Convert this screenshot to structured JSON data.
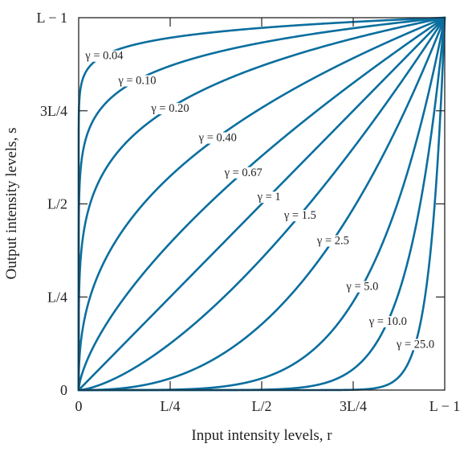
{
  "chart_data": {
    "type": "line",
    "xlabel": "Input intensity levels, r",
    "ylabel": "Output intensity levels, s",
    "xlim": [
      0,
      1
    ],
    "ylim": [
      0,
      1
    ],
    "x_ticks": [
      {
        "value": 0,
        "label": "0"
      },
      {
        "value": 0.25,
        "label": "L/4"
      },
      {
        "value": 0.5,
        "label": "L/2"
      },
      {
        "value": 0.75,
        "label": "3L/4"
      },
      {
        "value": 1,
        "label": "L − 1"
      }
    ],
    "y_ticks": [
      {
        "value": 0,
        "label": "0"
      },
      {
        "value": 0.25,
        "label": "L/4"
      },
      {
        "value": 0.5,
        "label": "L/2"
      },
      {
        "value": 0.75,
        "label": "3L/4"
      },
      {
        "value": 1,
        "label": "L − 1"
      }
    ],
    "curve_color": "#0a6e9e",
    "series": [
      {
        "name": "γ = 0.04",
        "gamma": 0.04
      },
      {
        "name": "γ = 0.10",
        "gamma": 0.1
      },
      {
        "name": "γ = 0.20",
        "gamma": 0.2
      },
      {
        "name": "γ = 0.40",
        "gamma": 0.4
      },
      {
        "name": "γ = 0.67",
        "gamma": 0.67
      },
      {
        "name": "γ = 1",
        "gamma": 1
      },
      {
        "name": "γ = 1.5",
        "gamma": 1.5
      },
      {
        "name": "γ = 2.5",
        "gamma": 2.5
      },
      {
        "name": "γ = 5.0",
        "gamma": 5.0
      },
      {
        "name": "γ = 10.0",
        "gamma": 10.0
      },
      {
        "name": "γ = 25.0",
        "gamma": 25.0
      }
    ]
  }
}
